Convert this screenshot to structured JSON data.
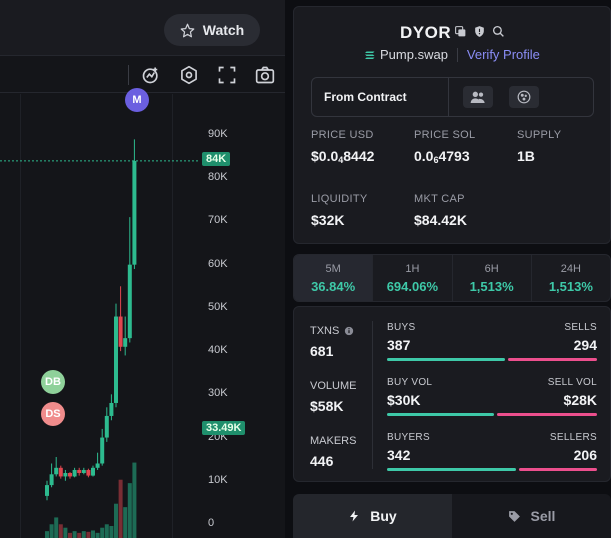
{
  "header": {
    "watch_label": "Watch"
  },
  "chart": {
    "price_tag": "84K",
    "volume_tag": "33.49K",
    "markers": {
      "m": "M",
      "db": "DB",
      "ds": "DS"
    }
  },
  "chart_data": {
    "type": "candlestick",
    "y_tick_labels": [
      "90K",
      "80K",
      "70K",
      "60K",
      "50K",
      "40K",
      "30K",
      "20K",
      "10K",
      "0"
    ],
    "y_ticks": [
      90000,
      80000,
      70000,
      60000,
      50000,
      40000,
      30000,
      20000,
      10000,
      0
    ],
    "ylim": [
      0,
      90000
    ],
    "last_price": 84000,
    "candles": [
      {
        "o": 6500,
        "c": 9000,
        "h": 10000,
        "l": 5500
      },
      {
        "o": 9000,
        "c": 11500,
        "h": 14000,
        "l": 8500
      },
      {
        "o": 11500,
        "c": 13000,
        "h": 15500,
        "l": 11000
      },
      {
        "o": 13000,
        "c": 11000,
        "h": 13500,
        "l": 10500
      },
      {
        "o": 11000,
        "c": 11800,
        "h": 12500,
        "l": 10000
      },
      {
        "o": 11800,
        "c": 11000,
        "h": 12000,
        "l": 10500
      },
      {
        "o": 11000,
        "c": 12500,
        "h": 13000,
        "l": 10800
      },
      {
        "o": 12500,
        "c": 11800,
        "h": 13000,
        "l": 11200
      },
      {
        "o": 11800,
        "c": 12500,
        "h": 13000,
        "l": 11500
      },
      {
        "o": 12500,
        "c": 11200,
        "h": 12800,
        "l": 10800
      },
      {
        "o": 11200,
        "c": 13000,
        "h": 13500,
        "l": 11000
      },
      {
        "o": 13000,
        "c": 14000,
        "h": 16500,
        "l": 12500
      },
      {
        "o": 14000,
        "c": 20000,
        "h": 22000,
        "l": 13500
      },
      {
        "o": 20000,
        "c": 25000,
        "h": 27000,
        "l": 19000
      },
      {
        "o": 25000,
        "c": 28000,
        "h": 30000,
        "l": 24000
      },
      {
        "o": 28000,
        "c": 48000,
        "h": 51000,
        "l": 27000
      },
      {
        "o": 48000,
        "c": 41000,
        "h": 55000,
        "l": 40000
      },
      {
        "o": 41000,
        "c": 43000,
        "h": 48000,
        "l": 39000
      },
      {
        "o": 43000,
        "c": 60000,
        "h": 71000,
        "l": 42000
      },
      {
        "o": 60000,
        "c": 84000,
        "h": 89000,
        "l": 59000
      }
    ],
    "volumes": [
      2000,
      4000,
      6000,
      4000,
      3000,
      1500,
      2000,
      1500,
      2000,
      1800,
      2200,
      1500,
      3000,
      4000,
      3500,
      10000,
      17000,
      9000,
      16000,
      22000
    ]
  },
  "token": {
    "name": "DYOR",
    "source": "Pump.swap",
    "verify_label": "Verify Profile",
    "contract_label": "From Contract"
  },
  "stats": {
    "price_usd_label": "PRICE USD",
    "price_usd_main": "$0.0",
    "price_usd_sub": "4",
    "price_usd_tail": "8442",
    "price_sol_label": "PRICE SOL",
    "price_sol_main": "0.0",
    "price_sol_sub": "6",
    "price_sol_tail": "4793",
    "supply_label": "SUPPLY",
    "supply": "1B",
    "liquidity_label": "LIQUIDITY",
    "liquidity": "$32K",
    "mktcap_label": "MKT CAP",
    "mktcap": "$84.42K"
  },
  "timeframes": [
    {
      "label": "5M",
      "value": "36.84%"
    },
    {
      "label": "1H",
      "value": "694.06%"
    },
    {
      "label": "6H",
      "value": "1,513%"
    },
    {
      "label": "24H",
      "value": "1,513%"
    }
  ],
  "txns": {
    "txns_label": "TXNS",
    "txns": "681",
    "volume_label": "VOLUME",
    "volume": "$58K",
    "makers_label": "MAKERS",
    "makers": "446",
    "buys_label": "BUYS",
    "buys": "387",
    "sells_label": "SELLS",
    "sells": "294",
    "buy_vol_label": "BUY VOL",
    "buy_vol": "$30K",
    "sell_vol_label": "SELL VOL",
    "sell_vol": "$28K",
    "buyers_label": "BUYERS",
    "buyers": "342",
    "sellers_label": "SELLERS",
    "sellers": "206",
    "buys_ratio": 0.568,
    "buy_vol_ratio": 0.517,
    "buyers_ratio": 0.624
  },
  "trade": {
    "buy_label": "Buy",
    "sell_label": "Sell"
  },
  "colors": {
    "up": "#2dbb8f",
    "down": "#e0464f",
    "accent": "#3ec9a8",
    "sell": "#ec4f8d"
  }
}
